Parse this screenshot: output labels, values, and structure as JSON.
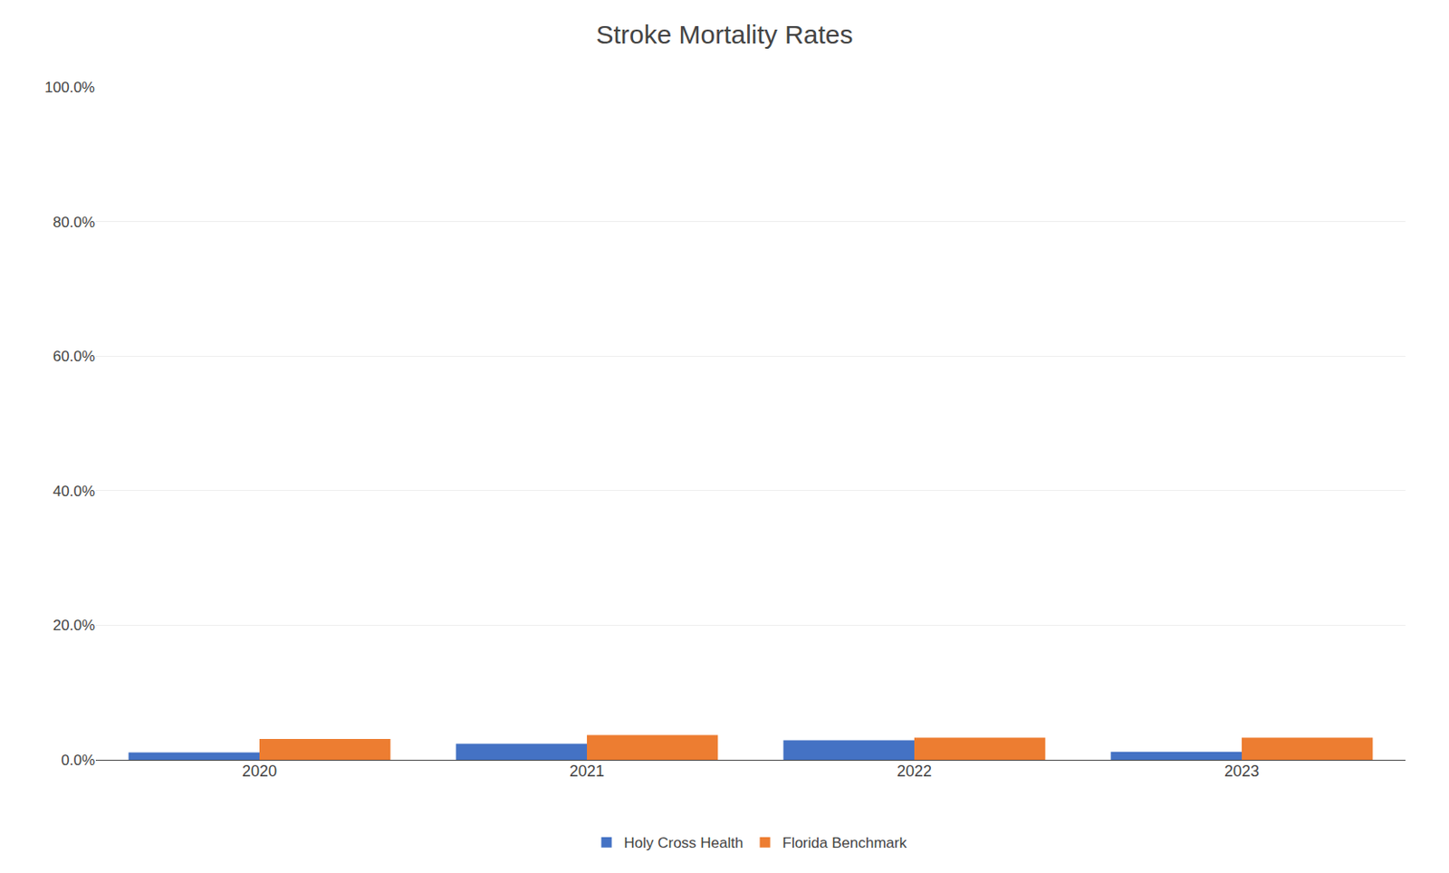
{
  "chart_data": {
    "type": "bar",
    "title": "Stroke Mortality Rates",
    "categories": [
      "2020",
      "2021",
      "2022",
      "2023"
    ],
    "series": [
      {
        "name": "Holy Cross Health",
        "color": "#4472C4",
        "values": [
          0.011,
          0.024,
          0.029,
          0.012
        ]
      },
      {
        "name": "Florida Benchmark",
        "color": "#ED7D31",
        "values": [
          0.031,
          0.037,
          0.033,
          0.033
        ]
      }
    ],
    "ylim": [
      0,
      1.0
    ],
    "yticks": [
      {
        "value": 0.0,
        "label": "0.0%"
      },
      {
        "value": 0.2,
        "label": "20.0%"
      },
      {
        "value": 0.4,
        "label": "40.0%"
      },
      {
        "value": 0.6,
        "label": "60.0%"
      },
      {
        "value": 0.8,
        "label": "80.0%"
      },
      {
        "value": 1.0,
        "label": "100.0%"
      }
    ],
    "grid": true,
    "legend": "bottom"
  }
}
